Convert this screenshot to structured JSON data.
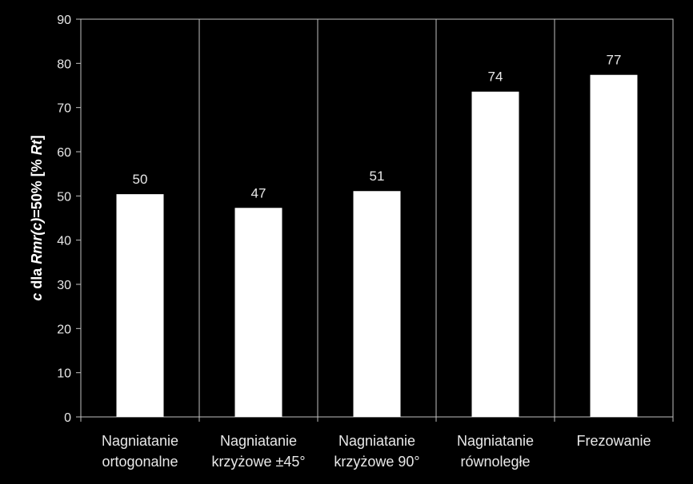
{
  "chart_data": {
    "type": "bar",
    "categories": [
      [
        "Nagniatanie",
        "ortogonalne"
      ],
      [
        "Nagniatanie",
        "krzyżowe ±45°"
      ],
      [
        "Nagniatanie",
        "krzyżowe 90°"
      ],
      [
        "Nagniatanie",
        "równoległe"
      ],
      [
        "Frezowanie"
      ]
    ],
    "values": [
      50.4,
      47.3,
      51.1,
      73.6,
      77.4
    ],
    "data_labels": [
      "50",
      "47",
      "51",
      "74",
      "77"
    ],
    "ylabel_parts": [
      {
        "text": "c",
        "italic": true
      },
      {
        "text": " dla ",
        "italic": false
      },
      {
        "text": "Rmr(c)",
        "italic": true
      },
      {
        "text": "=50% [% ",
        "italic": false
      },
      {
        "text": "Rt",
        "italic": true
      },
      {
        "text": "]",
        "italic": false
      }
    ],
    "xlabel": "",
    "ylim": [
      0,
      90
    ],
    "yticks": [
      "0",
      "10",
      "20",
      "30",
      "40",
      "50",
      "60",
      "70",
      "80",
      "90"
    ],
    "grid": "vertical separators between categories",
    "legend": "none",
    "colors": {
      "background": "#000000",
      "bar": "#ffffff",
      "axis": "#bfbfbf",
      "text": "#e8e8e8"
    }
  }
}
